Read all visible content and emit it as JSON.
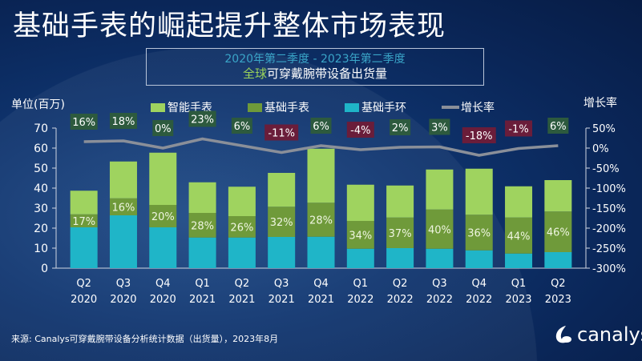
{
  "title": "基础手表的崛起提升整体市场表现",
  "subtitle_line1": "2020年第二季度 - 2023年第二季度",
  "subtitle_line2_highlight": "全球",
  "subtitle_line2_rest": "可穿戴腕带设备出货量",
  "source": "来源: Canalys可穿戴腕带设备分析统计数据（出货量），2023年8月",
  "logo_text": "canalys",
  "colors": {
    "smart_watch": "#9fd35f",
    "basic_watch": "#6f9a3a",
    "basic_band": "#1fb5c8",
    "growth_line": "#8a8f99",
    "positive_label": "#2d5a3e",
    "negative_label": "#6a1d3a"
  },
  "chart_data": {
    "type": "bar",
    "stacked": true,
    "ylabel": "单位(百万)",
    "y2label": "增长率",
    "ylim": [
      0,
      70
    ],
    "yticks": [
      "0",
      "10",
      "20",
      "30",
      "40",
      "50",
      "60",
      "70"
    ],
    "y2lim": [
      -300,
      50
    ],
    "y2ticks": [
      "-300%",
      "-250%",
      "-200%",
      "-150%",
      "-100%",
      "-50%",
      "0%",
      "50%"
    ],
    "categories": [
      [
        "Q2",
        "2020"
      ],
      [
        "Q3",
        "2020"
      ],
      [
        "Q4",
        "2020"
      ],
      [
        "Q1",
        "2021"
      ],
      [
        "Q2",
        "2021"
      ],
      [
        "Q3",
        "2021"
      ],
      [
        "Q4",
        "2021"
      ],
      [
        "Q1",
        "2022"
      ],
      [
        "Q2",
        "2022"
      ],
      [
        "Q3",
        "2022"
      ],
      [
        "Q4",
        "2022"
      ],
      [
        "Q1",
        "2023"
      ],
      [
        "Q2",
        "2023"
      ]
    ],
    "legend": [
      "智能手表",
      "基础手表",
      "基础手环",
      "增长率"
    ],
    "legend_placement": "top",
    "series": [
      {
        "name": "基础手环",
        "values": [
          20.4,
          26.4,
          20.4,
          15.3,
          15.3,
          15.6,
          15.7,
          9.7,
          10.0,
          9.7,
          8.9,
          7.3,
          8.0
        ]
      },
      {
        "name": "基础手表",
        "values": [
          6.5,
          8.5,
          11.2,
          12.3,
          10.7,
          15.1,
          17.0,
          13.9,
          15.3,
          19.6,
          17.8,
          18.0,
          20.3
        ]
      },
      {
        "name": "智能手表",
        "values": [
          11.8,
          18.4,
          26.1,
          15.3,
          14.7,
          16.9,
          27.0,
          18.1,
          16.0,
          20.0,
          23.0,
          15.6,
          15.7
        ]
      }
    ],
    "basic_watch_share_labels": [
      "17%",
      "16%",
      "20%",
      "28%",
      "26%",
      "32%",
      "28%",
      "34%",
      "37%",
      "40%",
      "36%",
      "44%",
      "46%"
    ],
    "growth": {
      "name": "增长率",
      "values": [
        16,
        18,
        0,
        23,
        6,
        -11,
        6,
        -4,
        2,
        3,
        -18,
        -1,
        6
      ],
      "labels": [
        "16%",
        "18%",
        "0%",
        "23%",
        "6%",
        "-11%",
        "6%",
        "-4%",
        "2%",
        "3%",
        "-18%",
        "-1%",
        "6%"
      ]
    }
  }
}
